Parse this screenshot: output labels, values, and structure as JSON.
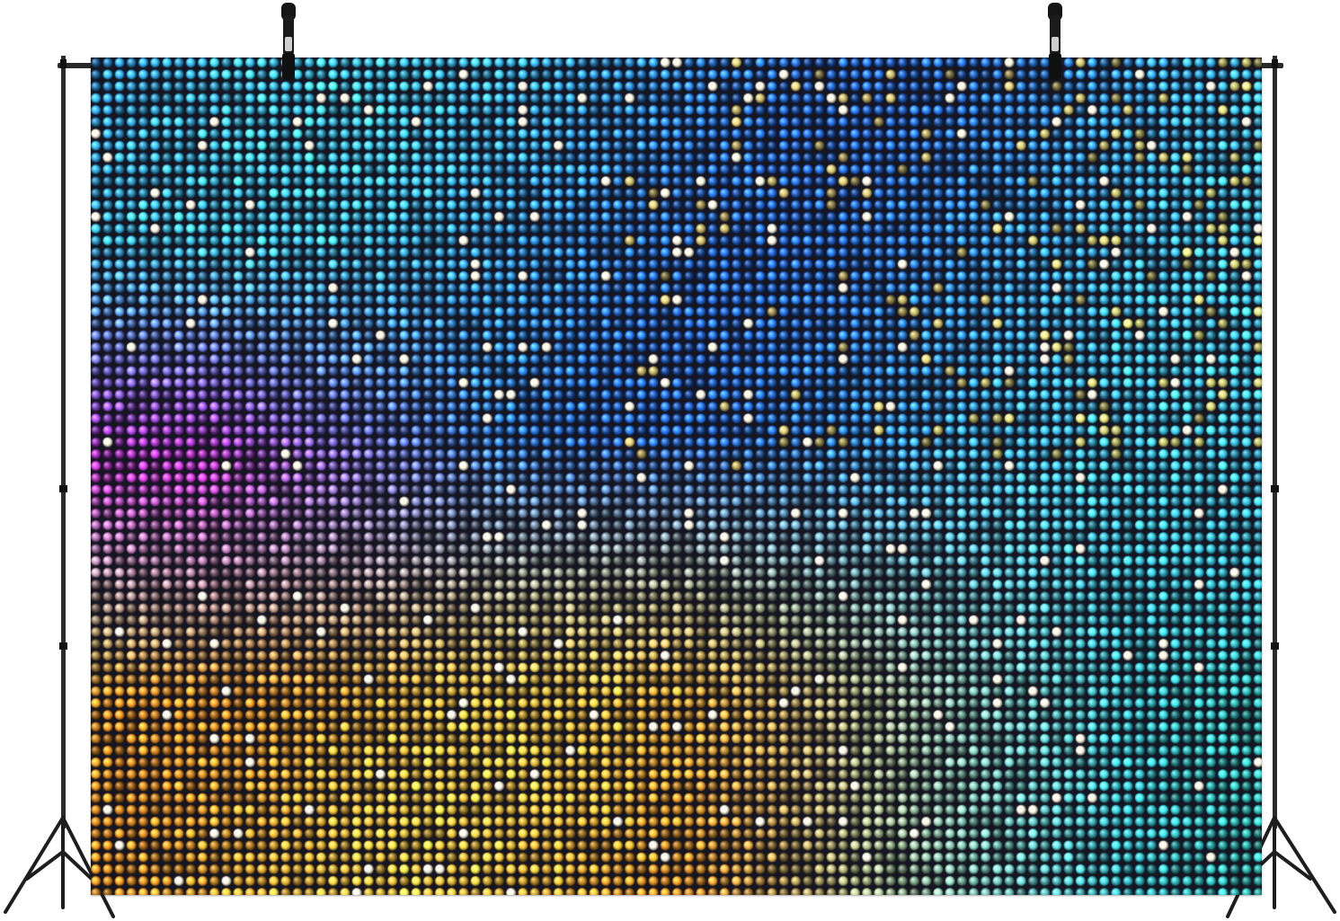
{
  "scene": {
    "subject": "sequin-backdrop",
    "colors": {
      "blue": "#1f63d6",
      "cyan": "#37c4f0",
      "purple": "#8b2fd6",
      "magenta": "#d32cc8",
      "orange": "#e58a1e",
      "gold": "#f2c23a",
      "teal": "#2bb8b0",
      "stand": "#222222",
      "background": "#ffffff"
    }
  }
}
